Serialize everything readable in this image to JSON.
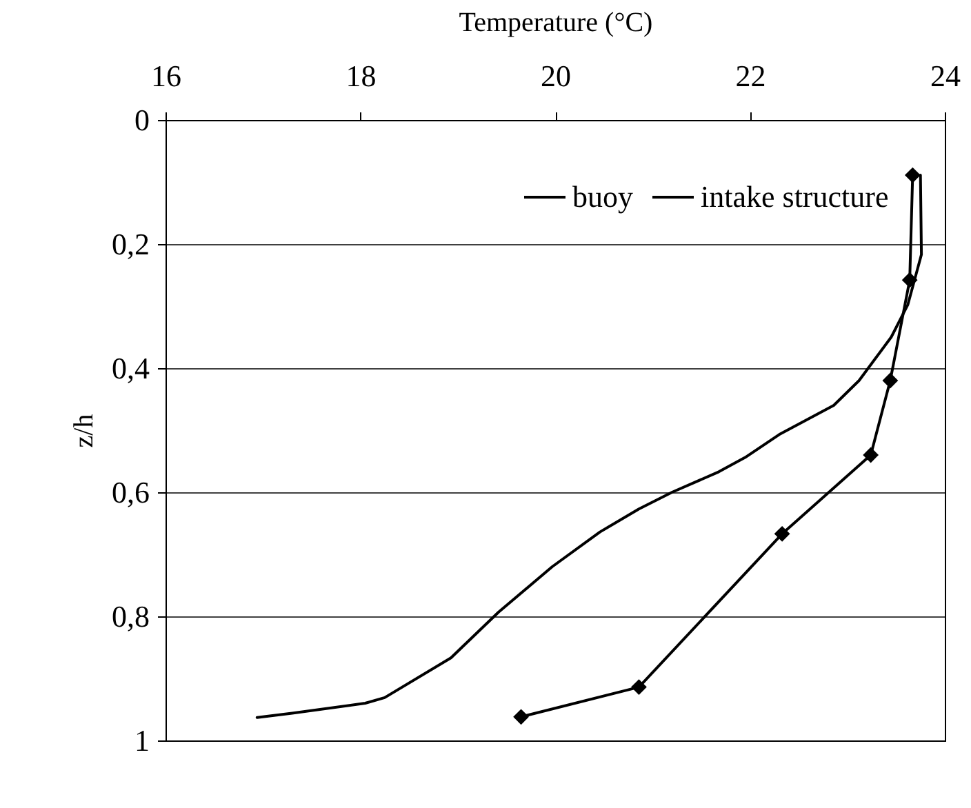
{
  "chart_data": {
    "type": "line",
    "xlabel": "Temperature (°C)",
    "ylabel": "z/h",
    "xlim": [
      16,
      24
    ],
    "xticks": [
      16,
      18,
      20,
      22,
      24
    ],
    "ylim": [
      1,
      0
    ],
    "yticks": [
      {
        "value": 0,
        "label": "0"
      },
      {
        "value": 0.2,
        "label": "0,2"
      },
      {
        "value": 0.4,
        "label": "0,4"
      },
      {
        "value": 0.6,
        "label": "0,6"
      },
      {
        "value": 0.8,
        "label": "0,8"
      },
      {
        "value": 1,
        "label": "1"
      }
    ],
    "grid": "y",
    "legend": "top right",
    "series": [
      {
        "name": "buoy",
        "color": "#000000",
        "marker": "none",
        "x": [
          23.75,
          23.76,
          23.62,
          23.45,
          23.12,
          22.86,
          22.3,
          21.95,
          21.68,
          21.2,
          20.86,
          20.46,
          19.97,
          19.42,
          18.93,
          18.25,
          18.05,
          17.3,
          16.94
        ],
        "values": [
          0.089,
          0.217,
          0.298,
          0.35,
          0.42,
          0.46,
          0.507,
          0.544,
          0.567,
          0.6,
          0.627,
          0.664,
          0.72,
          0.793,
          0.867,
          0.931,
          0.94,
          0.956,
          0.963
        ]
      },
      {
        "name": "intake structure",
        "color": "#000000",
        "marker": "diamond",
        "x": [
          23.67,
          23.64,
          23.44,
          23.24,
          22.33,
          20.86,
          19.65
        ],
        "values": [
          0.089,
          0.258,
          0.42,
          0.54,
          0.667,
          0.914,
          0.962
        ]
      }
    ]
  }
}
